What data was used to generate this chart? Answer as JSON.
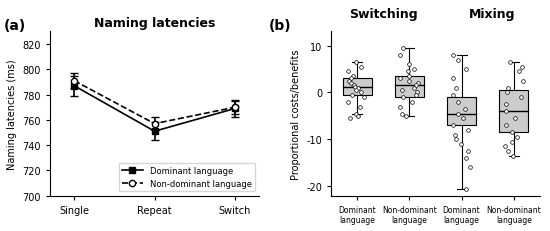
{
  "panel_a": {
    "title": "Naming latencies",
    "xlabel_ticks": [
      "Single",
      "Repeat",
      "Switch"
    ],
    "ylabel": "Naming latencies (ms)",
    "ylim": [
      700,
      830
    ],
    "yticks": [
      700,
      720,
      740,
      760,
      780,
      800,
      820
    ],
    "dominant": {
      "means": [
        787,
        751,
        769
      ],
      "errors": [
        8,
        7,
        7
      ]
    },
    "nondominant": {
      "means": [
        791,
        757,
        770
      ],
      "errors": [
        6,
        5,
        5
      ]
    }
  },
  "panel_b": {
    "title_switching": "Switching",
    "title_mixing": "Mixing",
    "ylabel": "Proportional costs/benefits",
    "ylim": [
      -22,
      13
    ],
    "yticks": [
      -20,
      -10,
      0,
      10
    ],
    "box_color": "#cccccc",
    "boxes": {
      "switch_dominant": {
        "q1": -0.5,
        "median": 1.2,
        "q3": 3.0,
        "whisker_low": -4.5,
        "whisker_high": 6.5,
        "jitter": [
          6.5,
          5.5,
          4.5,
          3.5,
          3.0,
          2.5,
          2.0,
          1.5,
          1.2,
          1.0,
          0.5,
          0.0,
          -0.5,
          -1.0,
          -2.0,
          -3.0,
          -4.5,
          -5.0,
          -5.5
        ]
      },
      "switch_nondominant": {
        "q1": -1.0,
        "median": 1.5,
        "q3": 3.5,
        "whisker_low": -5.0,
        "whisker_high": 9.5,
        "jitter": [
          9.5,
          8.0,
          6.0,
          5.0,
          4.5,
          3.5,
          3.0,
          2.5,
          2.0,
          1.5,
          1.0,
          0.5,
          0.0,
          -0.5,
          -1.0,
          -2.0,
          -3.0,
          -4.5,
          -5.0
        ]
      },
      "mix_dominant": {
        "q1": -7.0,
        "median": -4.5,
        "q3": -1.0,
        "whisker_low": -20.5,
        "whisker_high": 8.0,
        "jitter": [
          8.0,
          7.0,
          5.0,
          3.0,
          1.0,
          -0.5,
          -2.0,
          -3.5,
          -4.5,
          -5.5,
          -7.0,
          -8.0,
          -9.0,
          -10.0,
          -11.0,
          -12.5,
          -14.0,
          -16.0,
          -20.5
        ]
      },
      "mix_nondominant": {
        "q1": -8.5,
        "median": -4.0,
        "q3": 0.5,
        "whisker_low": -13.5,
        "whisker_high": 6.5,
        "jitter": [
          6.5,
          5.5,
          4.5,
          2.5,
          1.0,
          0.0,
          -1.0,
          -2.5,
          -4.0,
          -5.5,
          -7.0,
          -8.5,
          -9.5,
          -10.5,
          -11.5,
          -12.5,
          -13.5
        ]
      }
    }
  },
  "label_a": "(a)",
  "label_b": "(b)"
}
